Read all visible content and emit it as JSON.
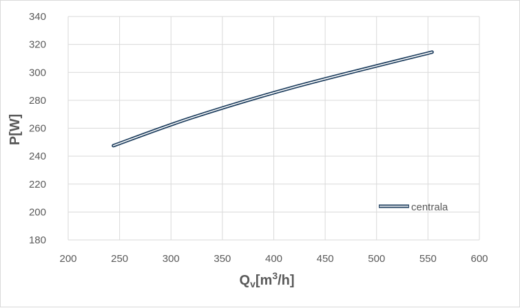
{
  "chart_data": {
    "type": "line",
    "xlabel_parts": {
      "main": "Q",
      "sub": "v",
      "mid": "[m",
      "sup": "3",
      "tail": "/h]"
    },
    "ylabel": "P[W]",
    "xlim": [
      200,
      600
    ],
    "ylim": [
      180,
      340
    ],
    "xticks": [
      200,
      250,
      300,
      350,
      400,
      450,
      500,
      550,
      600
    ],
    "yticks": [
      180,
      200,
      220,
      240,
      260,
      280,
      300,
      320,
      340
    ],
    "grid": true,
    "legend_position": "bottom-right",
    "series": [
      {
        "name": "centrala",
        "color": "#1f3f5f",
        "x": [
          244,
          320,
          420,
          554
        ],
        "y": [
          247.5,
          267.5,
          289.5,
          314.5
        ]
      }
    ]
  }
}
